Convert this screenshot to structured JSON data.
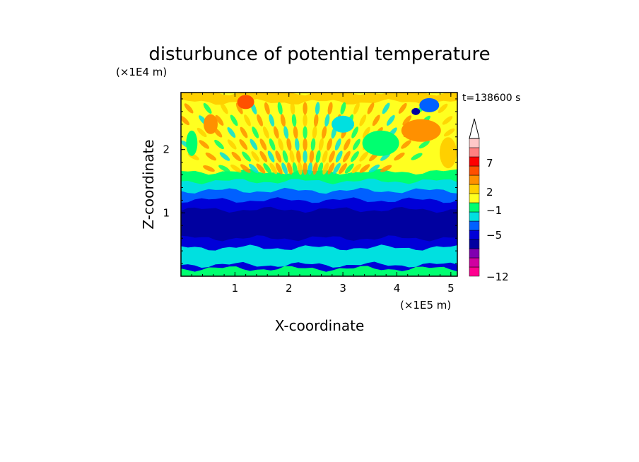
{
  "chart_data": {
    "type": "heatmap",
    "title": "disturbunce of potential temperature",
    "time_label": "t=138600 s",
    "xlabel": "X-coordinate",
    "ylabel": "Z-coordinate",
    "x_unit": "(×1E5 m)",
    "y_unit": "(×1E4 m)",
    "x_ticks": [
      "1",
      "2",
      "3",
      "4",
      "5"
    ],
    "y_ticks": [
      "1",
      "2"
    ],
    "xlim": [
      0,
      5.12
    ],
    "ylim": [
      0,
      2.9
    ],
    "colorbar": {
      "labels": [
        "7",
        "2",
        "−1",
        "−5",
        "−12"
      ],
      "colors": [
        "#ff0090",
        "#d000a0",
        "#8000b0",
        "#0000a0",
        "#0000d8",
        "#0060ff",
        "#00e0e0",
        "#00ff70",
        "#ffff20",
        "#ffd000",
        "#ff9000",
        "#ff5000",
        "#ff0000",
        "#ff8080",
        "#ffc8c8"
      ]
    },
    "layers": [
      {
        "zmin": 2.75,
        "zmax": 2.9,
        "color": "#ffd000"
      },
      {
        "zmin": 1.65,
        "zmax": 2.75,
        "color": "#ffff20"
      },
      {
        "zmin": 1.5,
        "zmax": 1.65,
        "color": "#00ff70"
      },
      {
        "zmin": 1.35,
        "zmax": 1.5,
        "color": "#00e0e0"
      },
      {
        "zmin": 1.2,
        "zmax": 1.35,
        "color": "#0060ff"
      },
      {
        "zmin": 1.05,
        "zmax": 1.2,
        "color": "#0000d8"
      },
      {
        "zmin": 0.6,
        "zmax": 1.05,
        "color": "#0000a0"
      },
      {
        "zmin": 0.45,
        "zmax": 0.6,
        "color": "#0000d8"
      },
      {
        "zmin": 0.18,
        "zmax": 0.45,
        "color": "#00e0e0"
      },
      {
        "zmin": 0.12,
        "zmax": 0.18,
        "color": "#0000d8"
      },
      {
        "zmin": 0.0,
        "zmax": 0.12,
        "color": "#00ff70"
      }
    ]
  }
}
